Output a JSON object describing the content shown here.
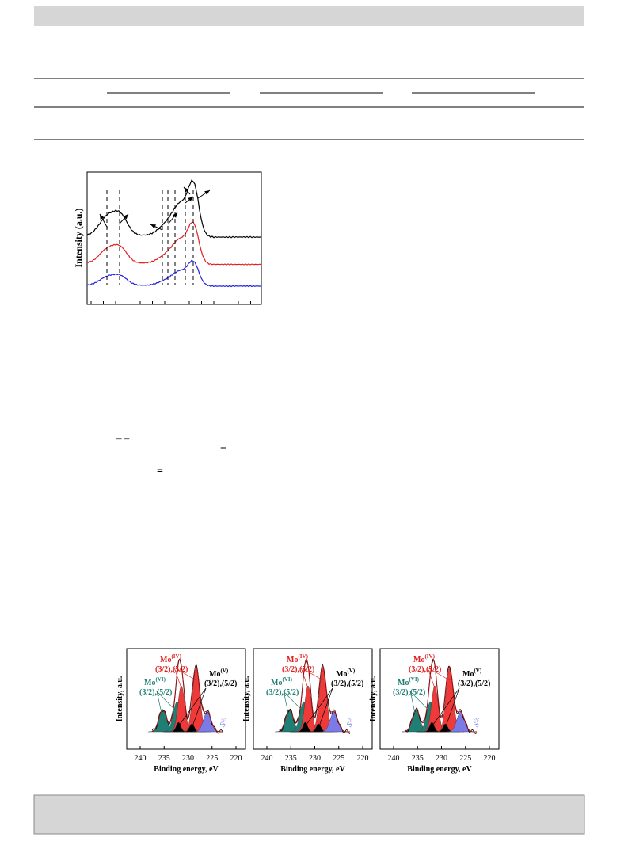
{
  "figure_1": {
    "y_axis_label": "Intensity (a.u.)"
  },
  "equation_marks": [
    "– –",
    "=",
    "="
  ],
  "figure_2": {
    "y_axis_label": "Intensity, a.u.",
    "x_axis_label": "Binding energy, eV",
    "x_ticks": [
      240,
      235,
      230,
      225,
      220
    ],
    "mo_iv": {
      "symbol": "Mo",
      "state": "(IV)",
      "levels": "(3/2),(5/2)"
    },
    "mo_vi": {
      "symbol": "Mo",
      "state": "(VI)",
      "levels": "(3/2),(5/2)"
    },
    "mo_v": {
      "symbol": "Mo",
      "state": "(V)",
      "levels": "(3/2),(5/2)"
    },
    "sulfide": {
      "symbol": "S",
      "charge": "2-"
    }
  }
}
